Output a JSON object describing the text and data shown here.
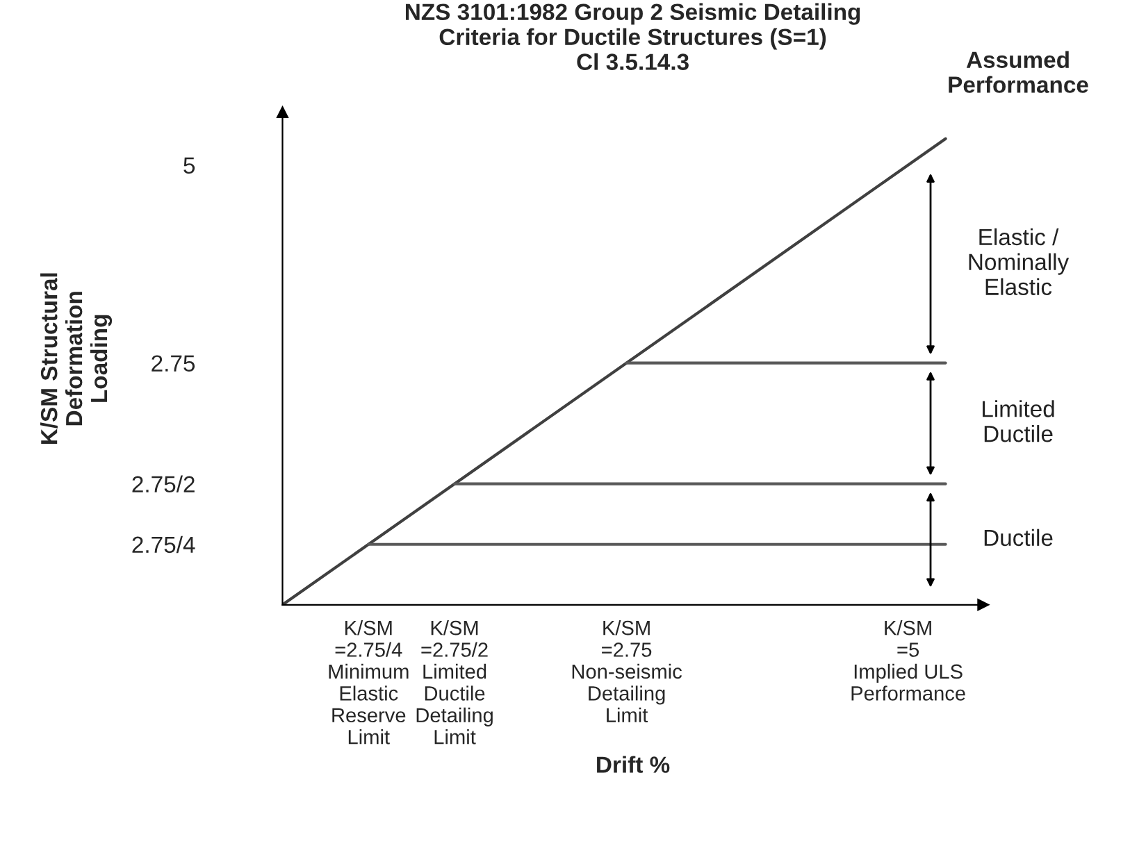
{
  "chart_data": {
    "type": "line",
    "title": "NZS 3101:1982 Group 2 Seismic Detailing\nCriteria for Ductile Structures (S=1)\nCl 3.5.14.3",
    "xlabel": "Drift %",
    "ylabel": "K/SM Structural\nDeformation\nLoading",
    "series": [
      {
        "color": "#404040",
        "x": [
          0,
          5.3
        ],
        "values": [
          0,
          5.3
        ]
      },
      {
        "color": "#595959",
        "x": [
          0.6875,
          5.3
        ],
        "values": [
          0.6875,
          0.6875
        ]
      },
      {
        "color": "#595959",
        "x": [
          1.375,
          5.3
        ],
        "values": [
          1.375,
          1.375
        ]
      },
      {
        "color": "#595959",
        "x": [
          2.75,
          5.3
        ],
        "values": [
          2.75,
          2.75
        ]
      }
    ],
    "xlim": [
      0,
      5.6
    ],
    "ylim": [
      0,
      5.6
    ],
    "xticks": [
      {
        "value": 0.6875,
        "label": "K/SM\n=2.75/4\nMinimum\nElastic\nReserve\nLimit"
      },
      {
        "value": 1.375,
        "label": "K/SM\n=2.75/2\nLimited\nDuctile\nDetailing\nLimit"
      },
      {
        "value": 2.75,
        "label": "K/SM\n=2.75\nNon-seismic\nDetailing\nLimit"
      },
      {
        "value": 5,
        "label": "K/SM\n=5\nImplied ULS\nPerformance"
      }
    ],
    "yticks": [
      {
        "value": 0.6875,
        "label": "2.75/4"
      },
      {
        "value": 1.375,
        "label": "2.75/2"
      },
      {
        "value": 2.75,
        "label": "2.75"
      },
      {
        "value": 5,
        "label": "5"
      }
    ],
    "annotations": [
      "Assumed\nPerformance",
      "Elastic /\nNominally\nElastic",
      "Limited\nDuctile",
      "Ductile"
    ],
    "grid": false,
    "legend": false
  }
}
